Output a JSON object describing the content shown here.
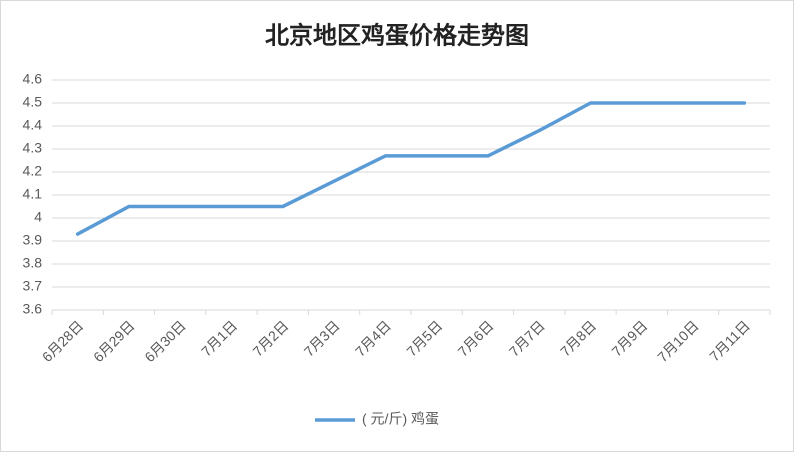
{
  "chart_data": {
    "type": "line",
    "title": "北京地区鸡蛋价格走势图",
    "categories": [
      "6月28日",
      "6月29日",
      "6月30日",
      "7月1日",
      "7月2日",
      "7月3日",
      "7月4日",
      "7月5日",
      "7月6日",
      "7月7日",
      "7月8日",
      "7月9日",
      "7月10日",
      "7月11日"
    ],
    "series": [
      {
        "name": "( 元/斤) 鸡蛋",
        "color": "#5b9bd5",
        "values": [
          3.93,
          4.05,
          4.05,
          4.05,
          4.05,
          4.16,
          4.27,
          4.27,
          4.27,
          4.38,
          4.5,
          4.5,
          4.5,
          4.5
        ]
      }
    ],
    "ylim": [
      3.6,
      4.6
    ],
    "yticks": [
      3.6,
      3.7,
      3.8,
      3.9,
      4,
      4.1,
      4.2,
      4.3,
      4.4,
      4.5,
      4.6
    ],
    "grid": true,
    "legend": "bottom"
  }
}
